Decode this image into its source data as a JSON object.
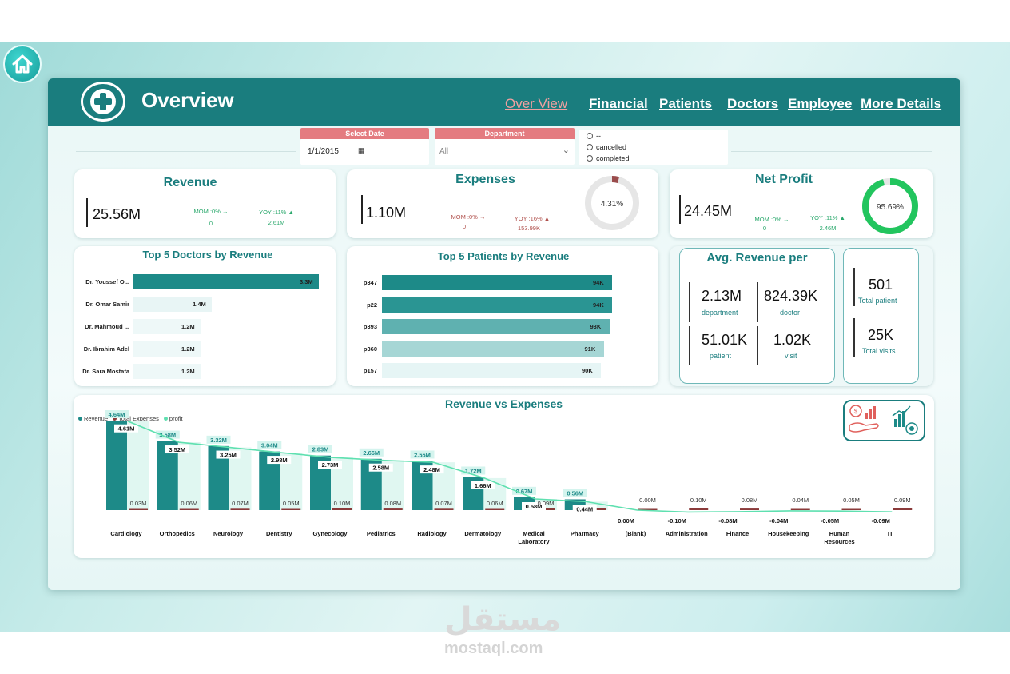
{
  "header": {
    "title": "Overview",
    "nav": [
      "Over View",
      "Financial",
      "Patients",
      "Doctors",
      "Employee",
      "More Details"
    ],
    "active_nav": "Over View",
    "color": "#1a7d7e"
  },
  "filters": {
    "date": {
      "label": "Select Date",
      "value": "1/1/2015"
    },
    "department": {
      "label": "Department",
      "value": "All"
    },
    "status_options": [
      "--",
      "cancelled",
      "completed"
    ]
  },
  "kpis": {
    "revenue": {
      "title": "Revenue",
      "value": "25.56M",
      "mom_label": "MOM :0% →",
      "mom_value": "0",
      "yoy_label": "YOY :11% ▲",
      "yoy_value": "2.61M"
    },
    "expenses": {
      "title": "Expenses",
      "value": "1.10M",
      "mom_label": "MOM :0% →",
      "mom_value": "0",
      "yoy_label": "YOY :16% ▲",
      "yoy_value": "153.99K",
      "gauge_label": "4.31%",
      "gauge_fraction": 0.0431
    },
    "net_profit": {
      "title": "Net Profit",
      "value": "24.45M",
      "mom_label": "MOM :0% →",
      "mom_value": "0",
      "yoy_label": "YOY :11% ▲",
      "yoy_value": "2.46M",
      "gauge_label": "95.69%",
      "gauge_fraction": 0.9569
    }
  },
  "top_doctors": {
    "title": "Top 5 Doctors by Revenue",
    "items": [
      {
        "name": "Dr. Youssef O...",
        "label": "3.3M",
        "value": 3.3
      },
      {
        "name": "Dr. Omar Samir",
        "label": "1.4M",
        "value": 1.4
      },
      {
        "name": "Dr. Mahmoud ...",
        "label": "1.2M",
        "value": 1.2
      },
      {
        "name": "Dr. Ibrahim Adel",
        "label": "1.2M",
        "value": 1.2
      },
      {
        "name": "Dr. Sara Mostafa",
        "label": "1.2M",
        "value": 1.2
      }
    ]
  },
  "top_patients": {
    "title": "Top 5 Patients by Revenue",
    "items": [
      {
        "name": "p347",
        "label": "94K",
        "value": 94
      },
      {
        "name": "p22",
        "label": "94K",
        "value": 94
      },
      {
        "name": "p393",
        "label": "93K",
        "value": 93
      },
      {
        "name": "p360",
        "label": "91K",
        "value": 91
      },
      {
        "name": "p157",
        "label": "90K",
        "value": 90
      }
    ]
  },
  "avg_revenue": {
    "title": "Avg. Revenue per",
    "department": {
      "value": "2.13M",
      "label": "department"
    },
    "doctor": {
      "value": "824.39K",
      "label": "doctor"
    },
    "patient": {
      "value": "51.01K",
      "label": "patient"
    },
    "visit": {
      "value": "1.02K",
      "label": "visit"
    }
  },
  "totals": {
    "patients": {
      "value": "501",
      "label": "Total patient"
    },
    "visits": {
      "value": "25K",
      "label": "Total visits"
    }
  },
  "chart_data": {
    "type": "bar",
    "title": "Revenue vs Expenses",
    "categories": [
      "Cardiology",
      "Orthopedics",
      "Neurology",
      "Dentistry",
      "Gynecology",
      "Pediatrics",
      "Radiology",
      "Dermatology",
      "Medical Laboratory",
      "Pharmacy",
      "(Blank)",
      "Administration",
      "Finance",
      "Housekeeping",
      "Human Resources",
      "IT"
    ],
    "series": [
      {
        "name": "Revenue",
        "values": [
          4.64,
          3.58,
          3.32,
          3.04,
          2.83,
          2.66,
          2.55,
          1.72,
          0.67,
          0.56,
          0,
          0,
          0,
          0,
          0,
          0
        ],
        "labels": [
          "4.64M",
          "3.58M",
          "3.32M",
          "3.04M",
          "2.83M",
          "2.66M",
          "2.55M",
          "1.72M",
          "0.67M",
          "0.56M",
          "",
          "",
          "",
          "",
          "",
          ""
        ]
      },
      {
        "name": "Total Expenses",
        "values": [
          0.03,
          0.06,
          0.07,
          0.05,
          0.1,
          0.08,
          0.07,
          0.06,
          0.09,
          0.12,
          0.0,
          0.1,
          0.08,
          0.04,
          0.05,
          0.09
        ],
        "labels": [
          "0.03M",
          "0.06M",
          "0.07M",
          "0.05M",
          "0.10M",
          "0.08M",
          "0.07M",
          "0.06M",
          "0.09M",
          "",
          "0.00M",
          "0.10M",
          "0.08M",
          "0.04M",
          "0.05M",
          "0.09M"
        ]
      },
      {
        "name": "profit",
        "values": [
          4.61,
          3.52,
          3.25,
          2.98,
          2.73,
          2.58,
          2.48,
          1.66,
          0.58,
          0.44,
          0.0,
          -0.1,
          -0.08,
          -0.04,
          -0.05,
          -0.09
        ],
        "labels": [
          "4.61M",
          "3.52M",
          "3.25M",
          "2.98M",
          "2.73M",
          "2.58M",
          "2.48M",
          "1.66M",
          "0.58M",
          "0.44M",
          "0.00M",
          "-0.10M",
          "-0.08M",
          "-0.04M",
          "-0.05M",
          "-0.09M"
        ]
      }
    ],
    "colors": {
      "Revenue": "#1d8a88",
      "Total Expenses": "#8a3a3a",
      "profit": "#5fe0b0"
    },
    "legend": "top-left"
  },
  "watermark": {
    "arabic": "مستقل",
    "latin": "mostaql.com"
  }
}
